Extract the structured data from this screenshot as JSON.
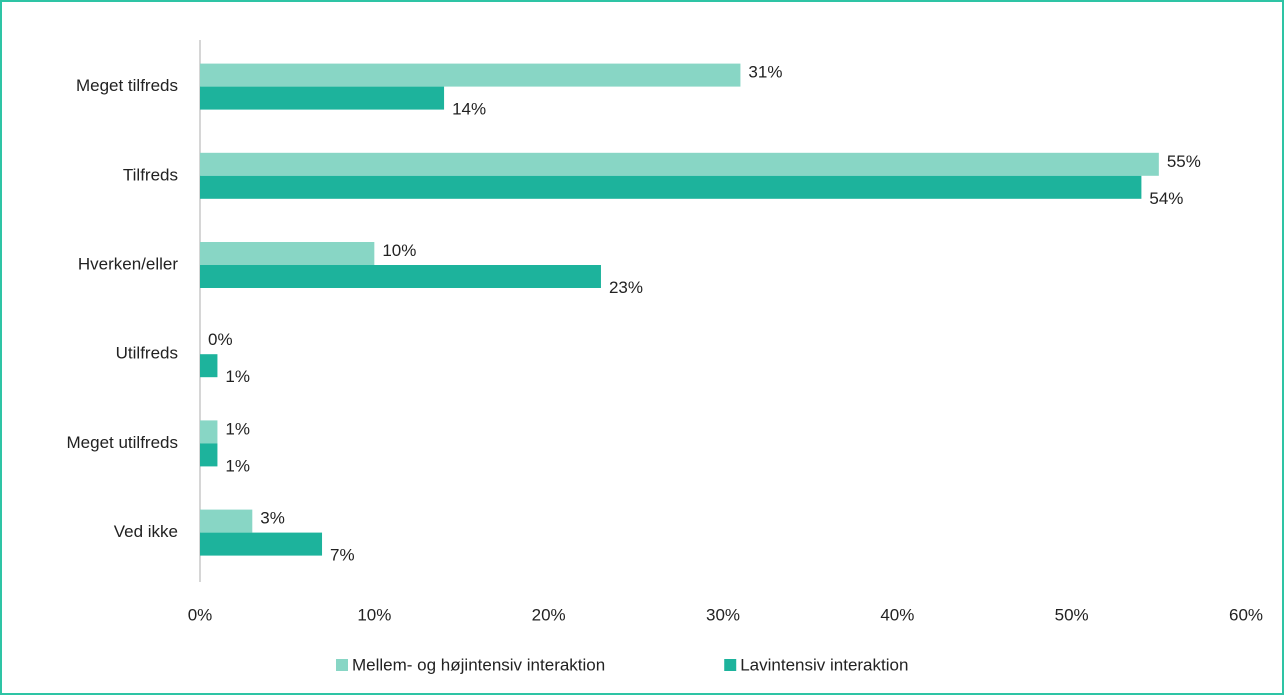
{
  "chart_data": {
    "type": "hbar",
    "categories": [
      "Meget tilfreds",
      "Tilfreds",
      "Hverken/eller",
      "Utilfreds",
      "Meget utilfreds",
      "Ved ikke"
    ],
    "series": [
      {
        "name": "Mellem- og højintensiv interaktion",
        "color": "#88d6c5",
        "values": [
          31,
          55,
          10,
          0,
          1,
          3
        ],
        "value_labels": [
          "31%",
          "55%",
          "10%",
          "0%",
          "1%",
          "3%"
        ]
      },
      {
        "name": "Lavintensiv interaktion",
        "color": "#1db39c",
        "values": [
          14,
          54,
          23,
          1,
          1,
          7
        ],
        "value_labels": [
          "14%",
          "54%",
          "23%",
          "1%",
          "1%",
          "7%"
        ]
      }
    ],
    "xlim": [
      0,
      60
    ],
    "xticks": [
      {
        "value": 0,
        "label": "0%"
      },
      {
        "value": 10,
        "label": "10%"
      },
      {
        "value": 20,
        "label": "20%"
      },
      {
        "value": 30,
        "label": "30%"
      },
      {
        "value": 40,
        "label": "40%"
      },
      {
        "value": 50,
        "label": "50%"
      },
      {
        "value": 60,
        "label": "60%"
      }
    ],
    "legend": "bottom"
  }
}
